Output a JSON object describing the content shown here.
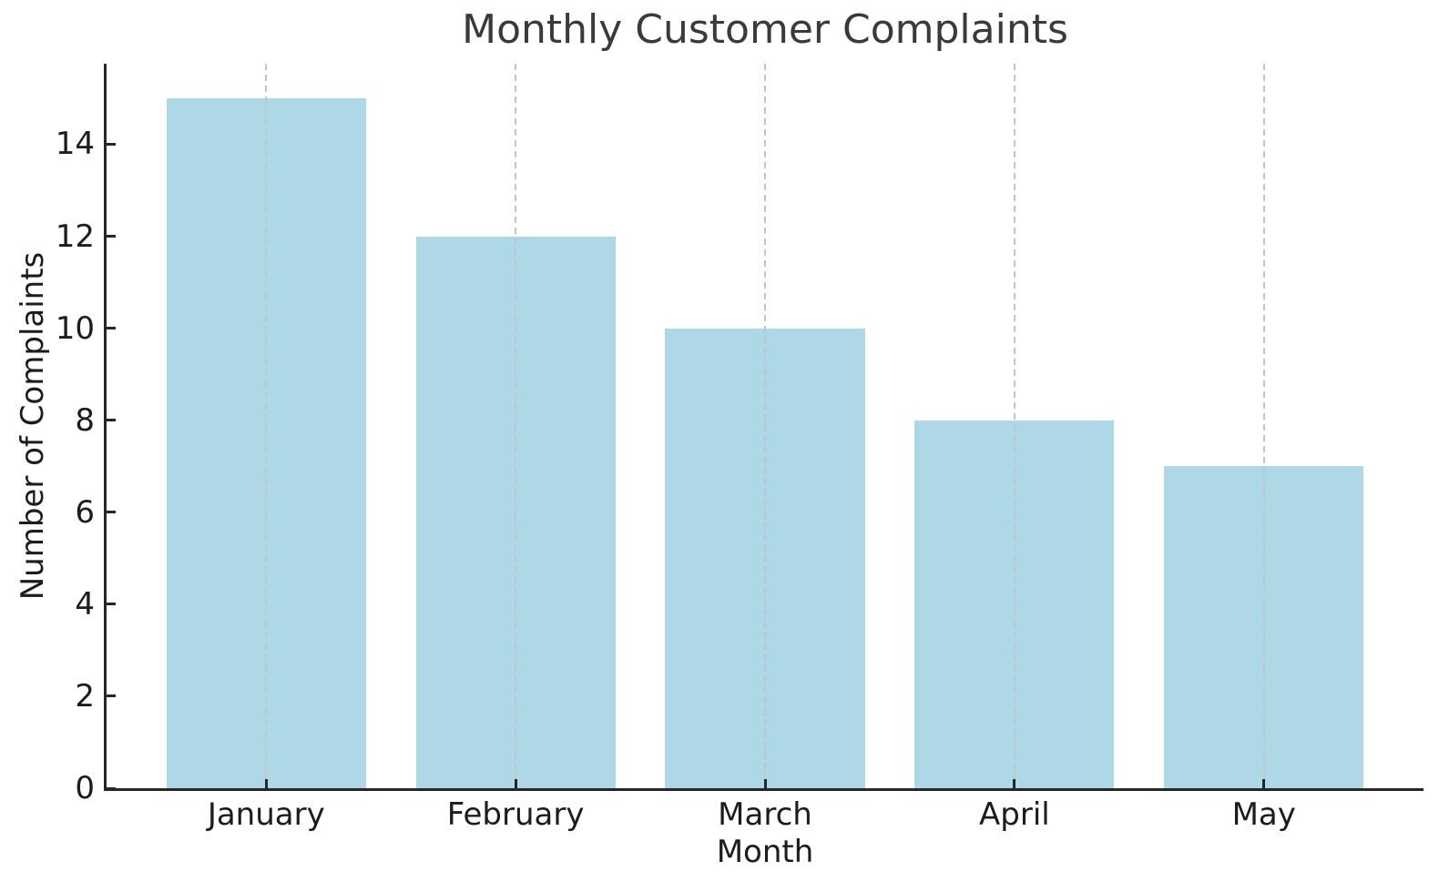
{
  "chart_data": {
    "type": "bar",
    "title": "Monthly Customer Complaints",
    "xlabel": "Month",
    "ylabel": "Number of Complaints",
    "categories": [
      "January",
      "February",
      "March",
      "April",
      "May"
    ],
    "values": [
      15,
      12,
      10,
      8,
      7
    ],
    "yticks": [
      0,
      2,
      4,
      6,
      8,
      10,
      12,
      14
    ],
    "ylim": [
      0,
      15.75
    ],
    "xlim": [
      -0.64,
      4.64
    ],
    "bar_width": 0.8,
    "grid": "vertical-dashed-at-category-centers",
    "legend": "none",
    "spines": "left-and-bottom-only",
    "tick_direction": "in",
    "colors": {
      "bar": "#add8e6",
      "grid": "#c4c4c4",
      "axis": "#262626",
      "tick_text": "#1c1c1c",
      "title_text": "#3a3a3a",
      "background": "#ffffff"
    }
  }
}
